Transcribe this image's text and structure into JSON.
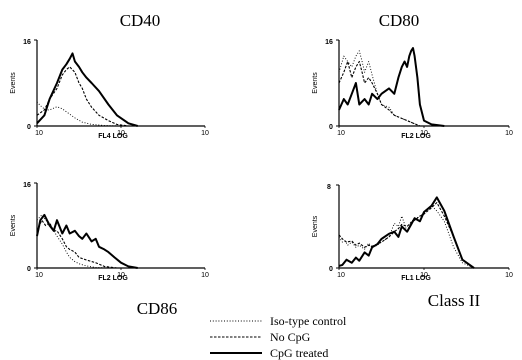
{
  "chart_data": [
    {
      "type": "line",
      "title": "CD40",
      "xlabel": "FL4 LOG",
      "ylabel": "Events",
      "xscale": "log",
      "xlim": [
        1,
        10000
      ],
      "ylim": [
        0,
        16
      ],
      "yticks": [
        "0",
        "16"
      ],
      "xticks": [
        "10",
        "10",
        "10"
      ],
      "series": [
        {
          "style": "iso",
          "x": [
            1,
            1.2,
            1.6,
            2,
            3,
            4,
            6,
            8,
            12,
            20,
            40,
            100
          ],
          "y": [
            4.5,
            3.8,
            3,
            3,
            3.6,
            3.2,
            2.2,
            1.5,
            0.7,
            0.3,
            0.1,
            0
          ]
        },
        {
          "style": "nocpg",
          "x": [
            1,
            1.5,
            2,
            3,
            4,
            5,
            6,
            8,
            10,
            12,
            15,
            20,
            30,
            50,
            80,
            150
          ],
          "y": [
            2,
            3,
            5,
            7,
            9.5,
            10.5,
            11,
            10,
            8,
            7,
            5,
            3.5,
            2,
            1,
            0.3,
            0
          ]
        },
        {
          "style": "cpg",
          "x": [
            1,
            1.5,
            2,
            3,
            4,
            5,
            6,
            7,
            8,
            10,
            12,
            15,
            20,
            30,
            50,
            80,
            150,
            250
          ],
          "y": [
            0.5,
            2,
            5,
            8,
            10.5,
            11.5,
            12.5,
            13.5,
            12,
            11,
            10,
            9,
            8,
            6.5,
            4,
            2,
            0.5,
            0
          ]
        }
      ]
    },
    {
      "type": "line",
      "title": "CD80",
      "xlabel": "FL2 LOG",
      "ylabel": "Events",
      "xscale": "log",
      "xlim": [
        1,
        10000
      ],
      "ylim": [
        0,
        16
      ],
      "yticks": [
        "0",
        "16"
      ],
      "xticks": [
        "10",
        "10",
        "10"
      ],
      "series": [
        {
          "style": "iso",
          "x": [
            1,
            1.3,
            1.6,
            2,
            2.5,
            3,
            3.5,
            4,
            5,
            6,
            8,
            10,
            15,
            20,
            40,
            80
          ],
          "y": [
            10,
            13,
            12,
            11,
            13,
            14,
            12,
            10,
            12,
            9.5,
            6,
            4,
            3.5,
            2,
            1,
            0
          ]
        },
        {
          "style": "nocpg",
          "x": [
            1,
            1.3,
            1.6,
            2,
            2.5,
            3,
            3.5,
            4,
            5,
            6,
            8,
            10,
            15,
            20,
            40,
            80
          ],
          "y": [
            8,
            10,
            12,
            9,
            11,
            12,
            10,
            8,
            9,
            8,
            6,
            4,
            3,
            2,
            1,
            0
          ]
        },
        {
          "style": "cpg",
          "x": [
            1,
            1.3,
            1.6,
            2,
            2.5,
            3,
            4,
            5,
            6,
            8,
            10,
            15,
            20,
            25,
            30,
            35,
            40,
            45,
            50,
            55,
            60,
            70,
            80,
            100,
            150,
            300
          ],
          "y": [
            3,
            5,
            4,
            6,
            8,
            4,
            5,
            4,
            6,
            5,
            6,
            7,
            6,
            9,
            11,
            12,
            11,
            13,
            14,
            14.5,
            13,
            9,
            4,
            1,
            0.3,
            0
          ]
        }
      ]
    },
    {
      "type": "line",
      "title": "CD86",
      "xlabel": "FL2 LOG",
      "ylabel": "Events",
      "xscale": "log",
      "xlim": [
        1,
        10000
      ],
      "ylim": [
        0,
        16
      ],
      "yticks": [
        "0",
        "16"
      ],
      "xticks": [
        "10",
        "10",
        "10"
      ],
      "series": [
        {
          "style": "iso",
          "x": [
            1,
            1.3,
            1.6,
            2,
            2.5,
            3,
            4,
            5,
            6,
            8,
            10,
            15,
            25,
            60
          ],
          "y": [
            9,
            10,
            9,
            8.5,
            7,
            6,
            4.5,
            3,
            2,
            1.2,
            0.8,
            0.4,
            0.1,
            0
          ]
        },
        {
          "style": "nocpg",
          "x": [
            1,
            1.3,
            1.6,
            2,
            2.5,
            3,
            4,
            5,
            6,
            8,
            10,
            15,
            25,
            40,
            80
          ],
          "y": [
            7,
            9,
            8,
            8.5,
            7,
            7,
            5.5,
            4,
            3.5,
            3,
            2,
            1.5,
            1,
            0.3,
            0
          ]
        },
        {
          "style": "cpg",
          "x": [
            1,
            1.2,
            1.5,
            2,
            2.5,
            3,
            4,
            5,
            6,
            8,
            10,
            12,
            15,
            20,
            25,
            30,
            40,
            50,
            70,
            100,
            150,
            250
          ],
          "y": [
            6,
            9,
            10,
            8,
            7,
            9,
            6.5,
            8,
            6.5,
            7,
            6,
            5.5,
            6.5,
            5,
            5.5,
            4,
            3.5,
            3,
            2,
            1,
            0.3,
            0
          ]
        }
      ]
    },
    {
      "type": "line",
      "title": "Class II",
      "xlabel": "FL1 LOG",
      "ylabel": "Events",
      "xscale": "log",
      "xlim": [
        1,
        10000
      ],
      "ylim": [
        0,
        8
      ],
      "yticks": [
        "0",
        "8"
      ],
      "xticks": [
        "10",
        "10",
        "10"
      ],
      "series": [
        {
          "style": "iso",
          "x": [
            1,
            1.2,
            1.4,
            1.6,
            2,
            2.5,
            3,
            4,
            5,
            6,
            8,
            10,
            15,
            20,
            25,
            30,
            40,
            50,
            60,
            80,
            100,
            150,
            200,
            300,
            500,
            800,
            1500
          ],
          "y": [
            3,
            2.5,
            2.6,
            2.2,
            2.5,
            2,
            2.2,
            1.8,
            2.4,
            2,
            2.2,
            2.5,
            3,
            4.3,
            4,
            5,
            3.5,
            4.5,
            4.7,
            5,
            5.3,
            6,
            5.5,
            4.5,
            2,
            0.5,
            0
          ]
        },
        {
          "style": "nocpg",
          "x": [
            1,
            1.2,
            1.5,
            2,
            2.5,
            3,
            4,
            5,
            6,
            8,
            10,
            15,
            20,
            25,
            30,
            40,
            50,
            60,
            80,
            100,
            150,
            200,
            300,
            500,
            800,
            1500
          ],
          "y": [
            3.2,
            2.8,
            2.5,
            2.6,
            2.2,
            2.4,
            2,
            2.2,
            2.1,
            2.3,
            2.5,
            3,
            3.5,
            3.8,
            4.2,
            4,
            4.4,
            4.6,
            5,
            5.2,
            5.8,
            6.3,
            5,
            3,
            0.8,
            0
          ]
        },
        {
          "style": "cpg",
          "x": [
            1,
            1.2,
            1.5,
            2,
            2.5,
            3,
            4,
            5,
            6,
            8,
            10,
            15,
            20,
            25,
            30,
            40,
            50,
            60,
            80,
            100,
            150,
            200,
            300,
            500,
            800,
            1500
          ],
          "y": [
            0.2,
            0.3,
            0.8,
            0.5,
            1,
            0.7,
            1.5,
            1.2,
            2,
            2.3,
            2.8,
            3.3,
            3.5,
            3,
            4,
            3.5,
            4.2,
            4.8,
            4.5,
            5.4,
            6,
            6.8,
            5.5,
            3,
            0.8,
            0
          ]
        }
      ]
    }
  ],
  "legend": {
    "items": [
      {
        "label": "Iso-type control",
        "style": "iso"
      },
      {
        "label": "No CpG",
        "style": "nocpg"
      },
      {
        "label": "CpG treated",
        "style": "cpg"
      }
    ]
  },
  "styles": {
    "iso": {
      "color": "#000000",
      "width": 0.9,
      "dash": "1 1.8"
    },
    "nocpg": {
      "color": "#000000",
      "width": 1.1,
      "dash": "2.5 1.5"
    },
    "cpg": {
      "color": "#000000",
      "width": 2.0,
      "dash": ""
    }
  }
}
